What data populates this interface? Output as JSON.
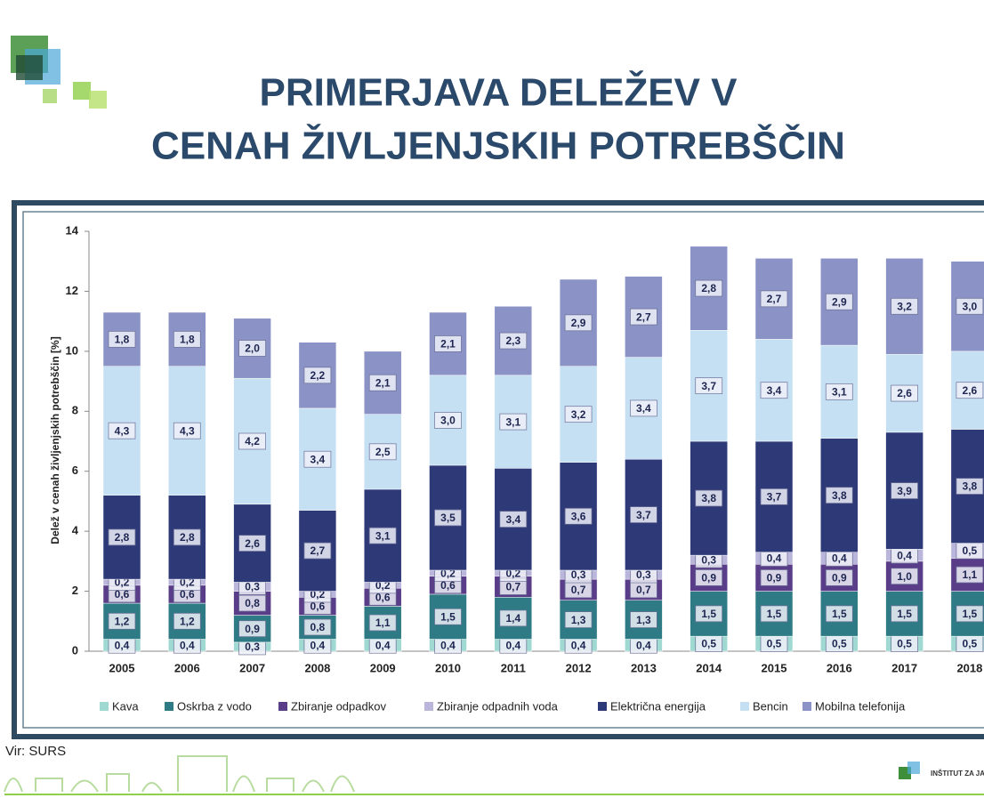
{
  "slide": {
    "title_lines": [
      "PRIMERJAVA DELEŽEV V",
      "CENAH ŽIVLJENJSKIH POTREBŠČIN"
    ],
    "source": "Vir: SURS",
    "logo_text": "INŠTITUT ZA JA"
  },
  "chart_data": {
    "type": "stacked_bar",
    "y_label": "Delež v cenah življenjskih potrebščin [%]",
    "categories": [
      "2005",
      "2006",
      "2007",
      "2008",
      "2009",
      "2010",
      "2011",
      "2012",
      "2013",
      "2014",
      "2015",
      "2016",
      "2017",
      "2018"
    ],
    "ylim": [
      0,
      14
    ],
    "yticks": [
      0,
      2,
      4,
      6,
      8,
      10,
      12,
      14
    ],
    "series": [
      {
        "name": "Kava",
        "color": "#9fd9d2",
        "values": [
          0.4,
          0.4,
          0.3,
          0.4,
          0.4,
          0.4,
          0.4,
          0.4,
          0.4,
          0.5,
          0.5,
          0.5,
          0.5,
          0.5
        ],
        "value_labels": [
          "0,4",
          "0,4",
          "0,3",
          "0,4",
          "0,4",
          "0,4",
          "0,4",
          "0,4",
          "0,4",
          "0,5",
          "0,5",
          "0,5",
          "0,5",
          "0,5"
        ]
      },
      {
        "name": "Oskrba z vodo",
        "color": "#2f7b85",
        "values": [
          1.2,
          1.2,
          0.9,
          0.8,
          1.1,
          1.5,
          1.4,
          1.3,
          1.3,
          1.5,
          1.5,
          1.5,
          1.5,
          1.5
        ],
        "value_labels": [
          "1,2",
          "1,2",
          "0,9",
          "0,8",
          "1,1",
          "1,5",
          "1,4",
          "1,3",
          "1,3",
          "1,5",
          "1,5",
          "1,5",
          "1,5",
          "1,5"
        ]
      },
      {
        "name": "Zbiranje odpadkov",
        "color": "#5a3d88",
        "values": [
          0.6,
          0.6,
          0.8,
          0.6,
          0.6,
          0.6,
          0.7,
          0.7,
          0.7,
          0.9,
          0.9,
          0.9,
          1.0,
          1.1
        ],
        "value_labels": [
          "0,6",
          "0,6",
          "0,8",
          "0,6",
          "0,6",
          "0,6",
          "0,7",
          "0,7",
          "0,7",
          "0,9",
          "0,9",
          "0,9",
          "1,0",
          "1,1"
        ]
      },
      {
        "name": "Zbiranje odpadnih voda",
        "color": "#bab5da",
        "values": [
          0.2,
          0.2,
          0.3,
          0.2,
          0.2,
          0.2,
          0.2,
          0.3,
          0.3,
          0.3,
          0.4,
          0.4,
          0.4,
          0.5
        ],
        "value_labels": [
          "0,2",
          "0,2",
          "0,3",
          "0,2",
          "0,2",
          "0,2",
          "0,2",
          "0,3",
          "0,3",
          "0,3",
          "0,4",
          "0,4",
          "0,4",
          "0,5"
        ]
      },
      {
        "name": "Električna energija",
        "color": "#2e3978",
        "values": [
          2.8,
          2.8,
          2.6,
          2.7,
          3.1,
          3.5,
          3.4,
          3.6,
          3.7,
          3.8,
          3.7,
          3.8,
          3.9,
          3.8
        ],
        "value_labels": [
          "2,8",
          "2,8",
          "2,6",
          "2,7",
          "3,1",
          "3,5",
          "3,4",
          "3,6",
          "3,7",
          "3,8",
          "3,7",
          "3,8",
          "3,9",
          "3,8"
        ]
      },
      {
        "name": "Bencin",
        "color": "#c6e0f3",
        "values": [
          4.3,
          4.3,
          4.2,
          3.4,
          2.5,
          3.0,
          3.1,
          3.2,
          3.4,
          3.7,
          3.4,
          3.1,
          2.6,
          2.6
        ],
        "value_labels": [
          "4,3",
          "4,3",
          "4,2",
          "3,4",
          "2,5",
          "3,0",
          "3,1",
          "3,2",
          "3,4",
          "3,7",
          "3,4",
          "3,1",
          "2,6",
          "2,6"
        ]
      },
      {
        "name": "Mobilna telefonija",
        "color": "#8b93c6",
        "values": [
          1.8,
          1.8,
          2.0,
          2.2,
          2.1,
          2.1,
          2.3,
          2.9,
          2.7,
          2.8,
          2.7,
          2.9,
          3.2,
          3.0
        ],
        "value_labels": [
          "1,8",
          "1,8",
          "2,0",
          "2,2",
          "2,1",
          "2,1",
          "2,3",
          "2,9",
          "2,7",
          "2,8",
          "2,7",
          "2,9",
          "3,2",
          "3,0"
        ]
      }
    ]
  }
}
